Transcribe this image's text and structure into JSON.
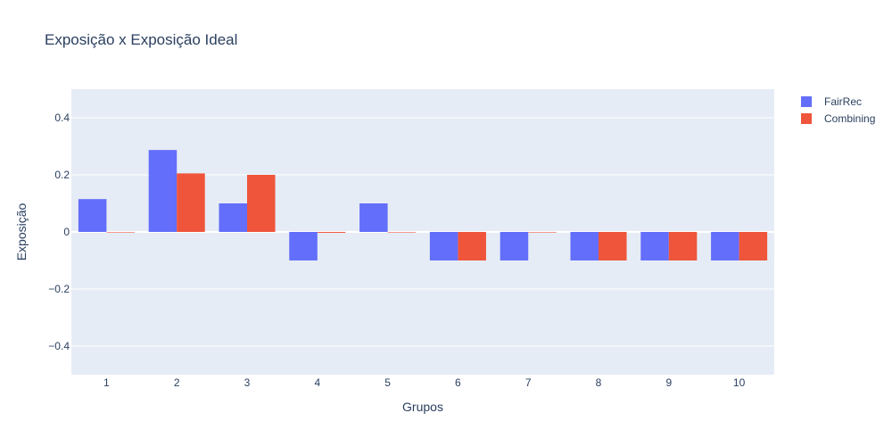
{
  "chart_data": {
    "type": "bar",
    "title": "Exposição x Exposição Ideal",
    "xlabel": "Grupos",
    "ylabel": "Exposição",
    "categories": [
      "1",
      "2",
      "3",
      "4",
      "5",
      "6",
      "7",
      "8",
      "9",
      "10"
    ],
    "ylim": [
      -0.5,
      0.5
    ],
    "yticks": [
      0.4,
      0.2,
      0,
      -0.2,
      -0.4
    ],
    "ytick_labels": [
      "0.4",
      "0.2",
      "0",
      "−0.2",
      "−0.4"
    ],
    "grid": true,
    "legend_position": "top-right",
    "series": [
      {
        "name": "FairRec",
        "color": "#636efa",
        "values": [
          0.115,
          0.287,
          0.1,
          -0.1,
          0.1,
          -0.1,
          -0.1,
          -0.1,
          -0.1,
          -0.1
        ]
      },
      {
        "name": "Combining",
        "color": "#ef553b",
        "values": [
          0,
          0.205,
          0.2,
          -0.003,
          0,
          -0.1,
          0,
          -0.1,
          -0.1,
          -0.1
        ]
      }
    ]
  },
  "colors": {
    "plot_bg": "#e5ecf6",
    "grid": "#ffffff",
    "text": "#2a3f5f"
  }
}
